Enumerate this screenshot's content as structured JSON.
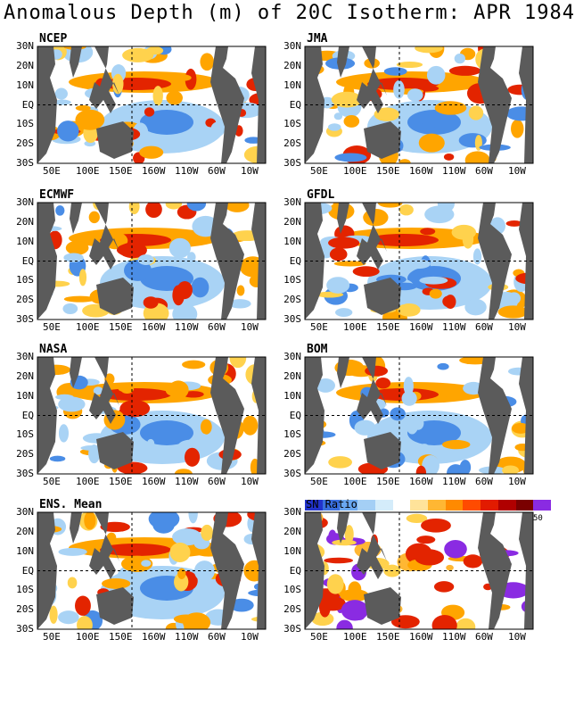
{
  "title": "Anomalous Depth (m) of 20C Isotherm: APR 1984",
  "panels": [
    {
      "label": "NCEP"
    },
    {
      "label": "JMA"
    },
    {
      "label": "ECMWF"
    },
    {
      "label": "GFDL"
    },
    {
      "label": "NASA"
    },
    {
      "label": "BOM"
    },
    {
      "label": "ENS. Mean"
    },
    {
      "label": ""
    }
  ],
  "lat_labels": [
    "30N",
    "20N",
    "10N",
    "EQ",
    "10S",
    "20S",
    "30S"
  ],
  "lon_labels": [
    "50E",
    "100E",
    "150E",
    "160W",
    "110W",
    "60W",
    "10W"
  ],
  "colorbar": {
    "title": "SN Ratio",
    "tick": "50",
    "colors": [
      "#2233cc",
      "#3a6fe0",
      "#6aa8f0",
      "#a4cff5",
      "#d4ecfa",
      "#ffffff",
      "#ffe39a",
      "#ffb733",
      "#ff8a00",
      "#ff4b00",
      "#e21b00",
      "#b00000",
      "#7a0000",
      "#8a2be2"
    ]
  },
  "colors": {
    "land": "#5b5b5b",
    "ocean_neutral": "#ffffff",
    "deep_blue": "#4a8de6",
    "light_blue": "#a9d3f5",
    "orange": "#ffa500",
    "red": "#e32400",
    "purple": "#8a2be2"
  }
}
